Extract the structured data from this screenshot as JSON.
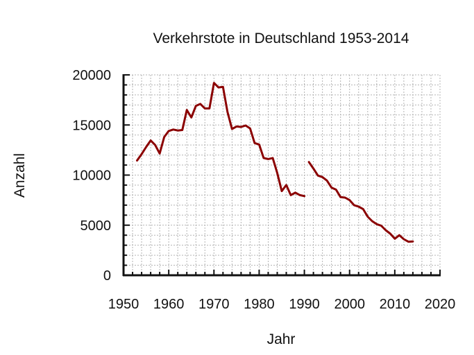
{
  "chart_data": {
    "type": "line",
    "title": "Verkehrstote in Deutschland 1953-2014",
    "xlabel": "Jahr",
    "ylabel": "Anzahl",
    "xlim": [
      1950,
      2020
    ],
    "ylim": [
      0,
      20000
    ],
    "xticks": [
      1950,
      1960,
      1970,
      1980,
      1990,
      2000,
      2010,
      2020
    ],
    "yticks": [
      0,
      5000,
      10000,
      15000,
      20000
    ],
    "grid": true,
    "color": "#8b0000",
    "series": [
      {
        "x": [
          1953,
          1954,
          1955,
          1956,
          1957,
          1958,
          1959,
          1960,
          1961,
          1962,
          1963,
          1964,
          1965,
          1966,
          1967,
          1968,
          1969,
          1970,
          1971,
          1972,
          1973,
          1974,
          1975,
          1976,
          1977,
          1978,
          1979,
          1980,
          1981,
          1982,
          1983,
          1984,
          1985,
          1986,
          1987,
          1988,
          1989,
          1990
        ],
        "y": [
          11450,
          12100,
          12800,
          13450,
          13000,
          12150,
          13800,
          14400,
          14550,
          14450,
          14500,
          16500,
          15750,
          16900,
          17100,
          16650,
          16650,
          19200,
          18750,
          18800,
          16300,
          14600,
          14850,
          14800,
          14950,
          14650,
          13200,
          13050,
          11700,
          11600,
          11700,
          10200,
          8400,
          9000,
          8000,
          8250,
          8000,
          7900
        ]
      },
      {
        "x": [
          1991,
          1992,
          1993,
          1994,
          1995,
          1996,
          1997,
          1998,
          1999,
          2000,
          2001,
          2002,
          2003,
          2004,
          2005,
          2006,
          2007,
          2008,
          2009,
          2010,
          2011,
          2012,
          2013,
          2014
        ],
        "y": [
          11300,
          10650,
          9950,
          9800,
          9450,
          8750,
          8550,
          7800,
          7750,
          7500,
          7000,
          6850,
          6600,
          5850,
          5400,
          5100,
          4950,
          4500,
          4150,
          3650,
          4000,
          3600,
          3350,
          3380
        ]
      }
    ]
  }
}
